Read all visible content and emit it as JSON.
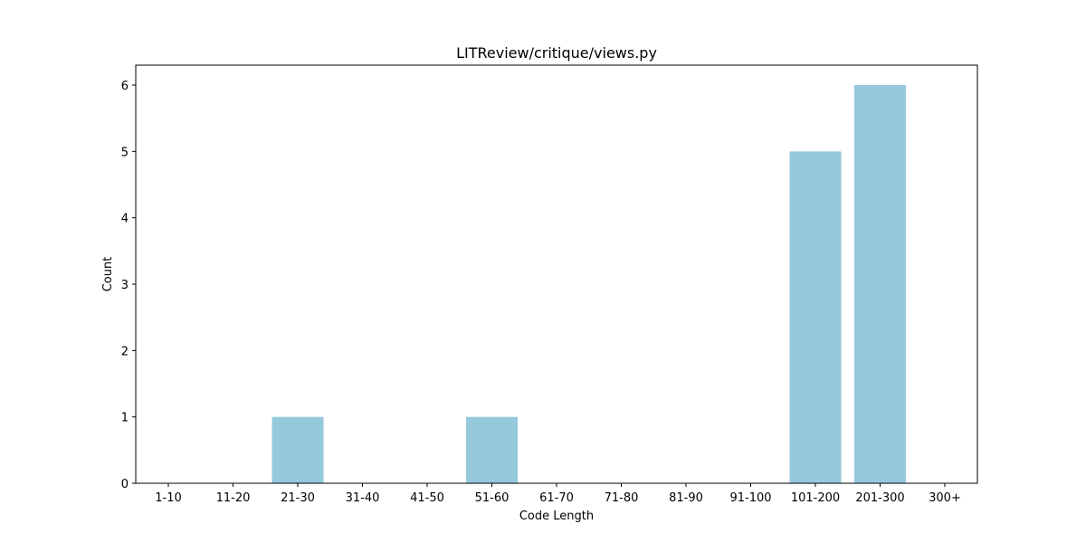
{
  "chart_data": {
    "type": "bar",
    "title": "LITReview/critique/views.py",
    "xlabel": "Code Length",
    "ylabel": "Count",
    "categories": [
      "1-10",
      "11-20",
      "21-30",
      "31-40",
      "41-50",
      "51-60",
      "61-70",
      "71-80",
      "81-90",
      "91-100",
      "101-200",
      "201-300",
      "300+"
    ],
    "values": [
      0,
      0,
      1,
      0,
      0,
      1,
      0,
      0,
      0,
      0,
      5,
      6,
      0
    ],
    "ylim": [
      0,
      6.3
    ],
    "yticks": [
      0,
      1,
      2,
      3,
      4,
      5,
      6
    ],
    "bar_color": "#96c9dc",
    "grid": false,
    "legend": "none"
  }
}
